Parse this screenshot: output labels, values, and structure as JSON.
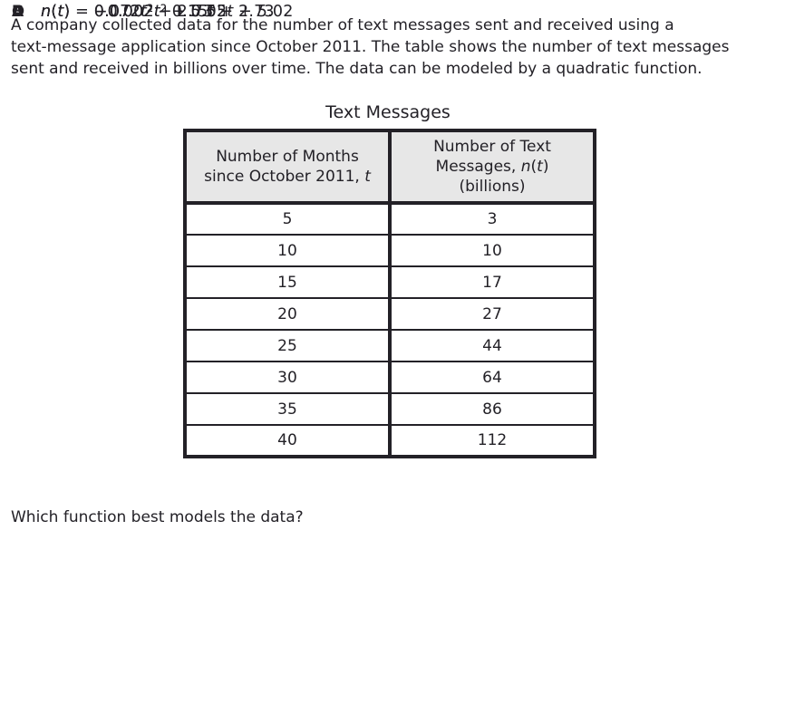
{
  "intro": {
    "lines": [
      "A company collected data for the number of text messages sent and received using a",
      "text-message application since October 2011. The table shows the number of text messages",
      "sent and received in billions over time. The data can be modeled by a quadratic function."
    ]
  },
  "table": {
    "title": "Text Messages",
    "col1_header_lines": [
      "Number of Months",
      "since October 2011, t"
    ],
    "col2_header_lines": [
      "Number of Text",
      "Messages, n(t)",
      "(billions)"
    ],
    "rows": [
      [
        5,
        3
      ],
      [
        10,
        10
      ],
      [
        15,
        17
      ],
      [
        20,
        27
      ],
      [
        25,
        44
      ],
      [
        30,
        64
      ],
      [
        35,
        86
      ],
      [
        40,
        112
      ]
    ]
  },
  "question": {
    "text": "Which function best models the data?"
  },
  "options": [
    {
      "letter": "A",
      "formula": "n(t) = −0.002t^2 + 0.55t + 5.02"
    },
    {
      "letter": "B",
      "formula": "n(t) = 0.072t^2 – 0.15t + 2.73"
    },
    {
      "letter": "C",
      "formula": "n(t) = −0.002t^2 + 5.02"
    },
    {
      "letter": "D",
      "formula": "n(t) = 0.072t^2 + 2.73"
    }
  ],
  "colors": {
    "text": "#232127",
    "table_border": "#232127",
    "header_bg": "#e7e7e7",
    "page_bg": "#ffffff"
  }
}
